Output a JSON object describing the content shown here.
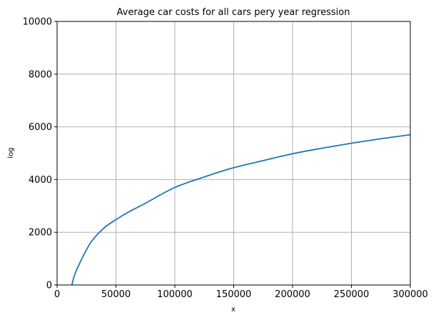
{
  "chart_data": {
    "type": "line",
    "title": "Average car costs for all cars pery year regression",
    "xlabel": "x",
    "ylabel": "log",
    "xlim": [
      0,
      300000
    ],
    "ylim": [
      0,
      10000
    ],
    "x_ticks": [
      0,
      50000,
      100000,
      150000,
      200000,
      250000,
      300000
    ],
    "x_tick_labels": [
      "0",
      "50000",
      "100000",
      "150000",
      "200000",
      "250000",
      "300000"
    ],
    "y_ticks": [
      0,
      2000,
      4000,
      6000,
      8000,
      10000
    ],
    "y_tick_labels": [
      "0",
      "2000",
      "4000",
      "6000",
      "8000",
      "10000"
    ],
    "grid": true,
    "legend": "none",
    "colors": {
      "line": "#1f77b4",
      "grid": "#b0b0b0"
    },
    "series": [
      {
        "x": [
          12500,
          15000,
          20000,
          25000,
          30000,
          40000,
          50000,
          60000,
          75000,
          100000,
          125000,
          150000,
          175000,
          200000,
          225000,
          250000,
          275000,
          300000
        ],
        "y": [
          0,
          400,
          900,
          1340,
          1700,
          2170,
          2480,
          2750,
          3100,
          3700,
          4100,
          4450,
          4720,
          4980,
          5190,
          5380,
          5550,
          5700
        ]
      }
    ]
  }
}
